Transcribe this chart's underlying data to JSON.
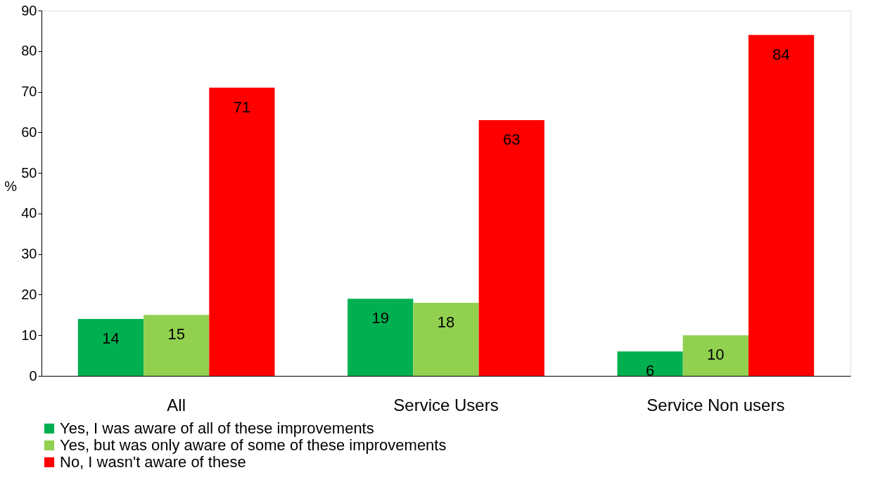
{
  "chart_data": {
    "type": "bar",
    "ylabel": "%",
    "categories": [
      "All",
      "Service Users",
      "Service Non users"
    ],
    "series": [
      {
        "name": "Yes, I was aware of all of these improvements",
        "color": "#00b050",
        "values": [
          14,
          19,
          6
        ]
      },
      {
        "name": "Yes, but was only aware of some of these improvements",
        "color": "#92d050",
        "values": [
          15,
          18,
          10
        ]
      },
      {
        "name": "No, I wasn't aware of these",
        "color": "#ff0000",
        "values": [
          71,
          63,
          84
        ]
      }
    ],
    "ylim": [
      0,
      90
    ],
    "yticks": [
      0,
      10,
      20,
      30,
      40,
      50,
      60,
      70,
      80,
      90
    ],
    "grid": false,
    "legend": "bottom",
    "data_labels": true
  }
}
